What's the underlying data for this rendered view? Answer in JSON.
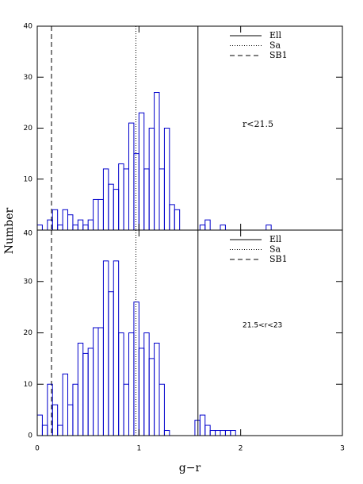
{
  "chart_data": [
    {
      "type": "histogram",
      "ylabel": "Number",
      "annotation": "r<21.5",
      "color": "#0000cc",
      "bins": [
        0,
        0.05,
        0.1,
        0.15,
        0.2,
        0.25,
        0.3,
        0.35,
        0.4,
        0.45,
        0.5,
        0.55,
        0.6,
        0.65,
        0.7,
        0.75,
        0.8,
        0.85,
        0.9,
        0.95,
        1,
        1.05,
        1.1,
        1.15,
        1.2,
        1.25,
        1.3,
        1.35,
        1.4,
        1.45,
        1.5,
        1.55,
        1.6,
        1.65,
        1.7,
        1.75,
        1.8,
        1.85,
        1.9,
        1.95,
        2,
        2.05,
        2.1,
        2.15,
        2.2,
        2.25,
        2.3,
        2.35,
        2.4,
        2.45,
        2.5,
        2.55,
        2.6,
        2.65,
        2.7,
        2.75,
        2.8,
        2.85,
        2.9,
        2.95,
        3
      ],
      "counts": [
        1,
        0,
        2,
        4,
        1,
        4,
        3,
        1,
        2,
        1,
        2,
        6,
        6,
        12,
        9,
        8,
        13,
        12,
        21,
        15,
        23,
        12,
        20,
        27,
        12,
        20,
        5,
        4,
        0,
        0,
        0,
        0,
        1,
        2,
        0,
        0,
        1,
        0,
        0,
        0,
        0,
        0,
        0,
        0,
        0,
        1,
        0,
        0,
        0,
        0,
        0,
        0,
        0,
        0,
        0,
        0,
        0,
        0,
        0,
        0
      ],
      "xlim": [
        0,
        3
      ],
      "ylim": [
        0,
        40
      ],
      "yticks": [
        10,
        20,
        30,
        40
      ],
      "reference_lines": [
        {
          "name": "Ell",
          "x": 1.58,
          "style": "solid"
        },
        {
          "name": "Sa",
          "x": 0.97,
          "style": "dotted"
        },
        {
          "name": "SB1",
          "x": 0.14,
          "style": "dashed"
        }
      ]
    },
    {
      "type": "histogram",
      "xlabel": "g−r",
      "annotation": "21.5<r<23",
      "color": "#0000cc",
      "bins": [
        0,
        0.05,
        0.1,
        0.15,
        0.2,
        0.25,
        0.3,
        0.35,
        0.4,
        0.45,
        0.5,
        0.55,
        0.6,
        0.65,
        0.7,
        0.75,
        0.8,
        0.85,
        0.9,
        0.95,
        1,
        1.05,
        1.1,
        1.15,
        1.2,
        1.25,
        1.3,
        1.35,
        1.4,
        1.45,
        1.5,
        1.55,
        1.6,
        1.65,
        1.7,
        1.75,
        1.8,
        1.85,
        1.9,
        1.95,
        2,
        2.05,
        2.1,
        2.15,
        2.2,
        2.25,
        2.3,
        2.35,
        2.4,
        2.45,
        2.5,
        2.55,
        2.6,
        2.65,
        2.7,
        2.75,
        2.8,
        2.85,
        2.9,
        2.95,
        3
      ],
      "counts": [
        4,
        2,
        10,
        6,
        2,
        12,
        6,
        10,
        18,
        16,
        17,
        21,
        21,
        34,
        28,
        34,
        20,
        10,
        20,
        26,
        17,
        20,
        15,
        18,
        10,
        1,
        0,
        0,
        0,
        0,
        0,
        3,
        4,
        2,
        1,
        1,
        1,
        1,
        1,
        0,
        0,
        0,
        0,
        0,
        0,
        0,
        0,
        0,
        0,
        0,
        0,
        0,
        0,
        0,
        0,
        0,
        0,
        0,
        0,
        0
      ],
      "xlim": [
        0,
        3
      ],
      "ylim": [
        0,
        40
      ],
      "xticks": [
        0,
        1,
        2,
        3
      ],
      "yticks": [
        0,
        10,
        20,
        30,
        40
      ],
      "reference_lines": [
        {
          "name": "Ell",
          "x": 1.58,
          "style": "solid"
        },
        {
          "name": "Sa",
          "x": 0.97,
          "style": "dotted"
        },
        {
          "name": "SB1",
          "x": 0.14,
          "style": "dashed"
        }
      ]
    }
  ]
}
